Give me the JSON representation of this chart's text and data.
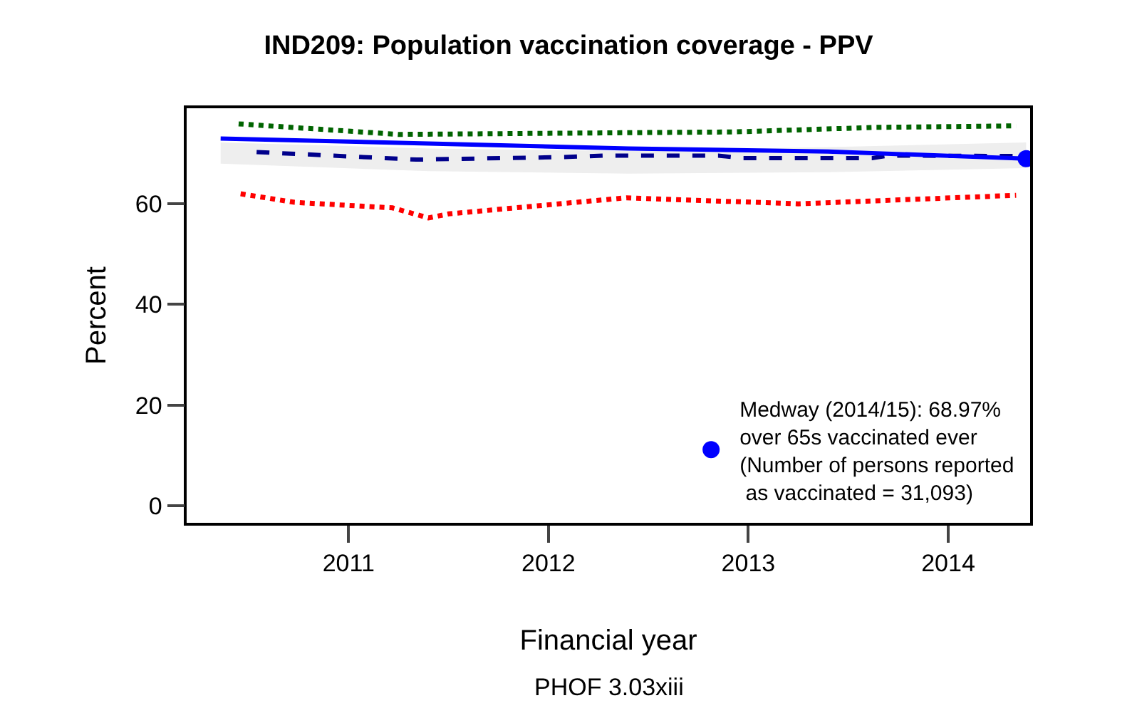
{
  "chart_data": {
    "type": "line",
    "title": "IND209: Population vaccination coverage - PPV",
    "xlabel": "Financial year",
    "ylabel": "Percent",
    "annotations": [
      "PHOF 3.03xiii"
    ],
    "xlim": [
      2010.19,
      2014.41
    ],
    "xticks": [
      2011,
      2012,
      2013,
      2014
    ],
    "ylim": [
      -3.4,
      79
    ],
    "yticks": [
      0,
      20,
      40,
      60
    ],
    "legend": "bottom right",
    "series": [
      {
        "color": "#006400",
        "line_style": "dotted",
        "x": [
          2010.45,
          2011.25,
          2012.93,
          2013.64,
          2014.34
        ],
        "values": [
          75.9,
          73.8,
          74.3,
          75.2,
          75.5
        ]
      },
      {
        "color": "#00008b",
        "line_style": "dashed",
        "x": [
          2010.54,
          2011.34,
          2012.08,
          2012.28,
          2012.85,
          2012.96,
          2013.62,
          2013.7,
          2014.34
        ],
        "values": [
          70.3,
          68.8,
          69.3,
          69.6,
          69.6,
          69.1,
          69.1,
          69.6,
          69.5
        ]
      },
      {
        "color": "#ff0000",
        "line_style": "dotted",
        "x": [
          2010.46,
          2010.73,
          2011.22,
          2011.4,
          2011.5,
          2012.08,
          2012.39,
          2013.25,
          2014.02,
          2014.34
        ],
        "values": [
          62.0,
          60.3,
          59.2,
          57.2,
          58.0,
          60.1,
          61.2,
          60.0,
          61.2,
          61.7
        ]
      },
      {
        "color": "#0000ff",
        "line_style": "solid",
        "x": [
          2010.36,
          2011.4,
          2012.4,
          2013.4,
          2014.39
        ],
        "values": [
          73.0,
          72.0,
          71.0,
          70.4,
          69.0
        ],
        "lower": [
          68.0,
          66.5,
          66.0,
          66.3,
          67.1
        ],
        "upper": [
          72.2,
          71.0,
          70.5,
          71.3,
          72.2
        ]
      },
      {
        "type": "scatter",
        "marker": "circle",
        "color": "#0000ff",
        "name": "Medway (2014/15): 68.97%\nover 65s vaccinated ever\n(Number of persons reported\n as vaccinated = 31,093)",
        "x": [
          2014.39
        ],
        "values": [
          68.97
        ]
      }
    ]
  }
}
